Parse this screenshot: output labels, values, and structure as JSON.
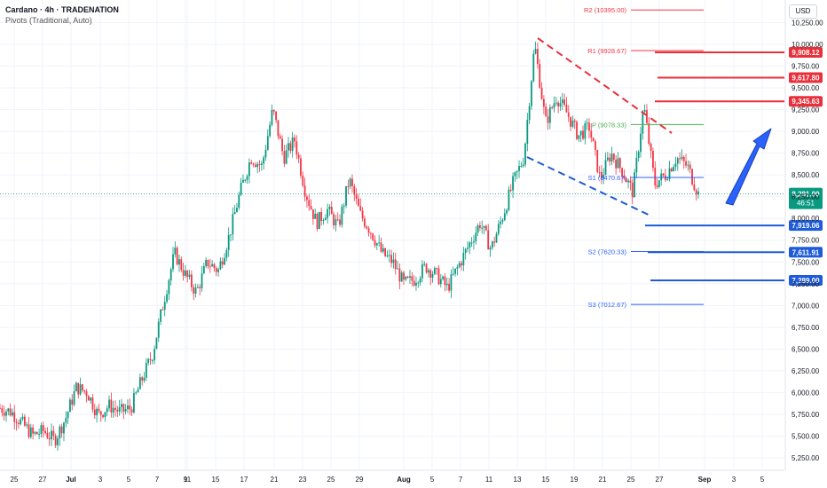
{
  "header": {
    "title": "Cardano · 4h · TRADENATION",
    "indicator": "Pivots (Traditional, Auto)",
    "currency": "USD"
  },
  "chart_data": {
    "type": "candlestick",
    "title": "Cardano · 4h · TRADENATION",
    "ylim": [
      5150,
      10400
    ],
    "y_ticks": [
      5250,
      5500,
      5750,
      6000,
      6250,
      6500,
      6750,
      7000,
      7250,
      7500,
      7750,
      8000,
      8250,
      8500,
      8750,
      9000,
      9250,
      9500,
      9750,
      10000,
      10250
    ],
    "y_tick_labels": [
      "5,250.00",
      "5,500.00",
      "5,750.00",
      "6,000.00",
      "6,250.00",
      "6,500.00",
      "6,750.00",
      "7,000.00",
      "7,250.00",
      "7,500.00",
      "7,750.00",
      "8,000.00",
      "8,250.00",
      "8,500.00",
      "8,750.00",
      "9,000.00",
      "9,250.00",
      "9,500.00",
      "9,750.00",
      "10,000.00",
      "10,250.00"
    ],
    "x_labels": [
      "25",
      "27",
      "Jul",
      "3",
      "5",
      "7",
      "9",
      "11",
      "15",
      "17",
      "21",
      "23",
      "25",
      "29",
      "Aug",
      "5",
      "7",
      "11",
      "13",
      "15",
      "19",
      "21",
      "25",
      "27",
      "Sep",
      "3",
      "5"
    ],
    "price_path": [
      {
        "x": "Jun 23",
        "y": 5820
      },
      {
        "x": "Jun 25",
        "y": 5780
      },
      {
        "x": "Jun 26",
        "y": 5650
      },
      {
        "x": "Jun 27",
        "y": 5510
      },
      {
        "x": "Jun 29",
        "y": 5560
      },
      {
        "x": "Jun 30",
        "y": 5450
      },
      {
        "x": "Jul 1",
        "y": 5700
      },
      {
        "x": "Jul 2",
        "y": 6060
      },
      {
        "x": "Jul 4",
        "y": 6000
      },
      {
        "x": "Jul 5",
        "y": 5740
      },
      {
        "x": "Jul 6",
        "y": 5850
      },
      {
        "x": "Jul 7",
        "y": 5780
      },
      {
        "x": "Jul 8",
        "y": 5820
      },
      {
        "x": "Jul 9",
        "y": 6150
      },
      {
        "x": "Jul 10",
        "y": 6450
      },
      {
        "x": "Jul 11",
        "y": 7050
      },
      {
        "x": "Jul 12",
        "y": 7600
      },
      {
        "x": "Jul 13",
        "y": 7350
      },
      {
        "x": "Jul 14",
        "y": 7150
      },
      {
        "x": "Jul 15",
        "y": 7500
      },
      {
        "x": "Jul 16",
        "y": 7400
      },
      {
        "x": "Jul 17",
        "y": 7800
      },
      {
        "x": "Jul 18",
        "y": 8300
      },
      {
        "x": "Jul 19",
        "y": 8700
      },
      {
        "x": "Jul 20",
        "y": 8600
      },
      {
        "x": "Jul 21",
        "y": 9250
      },
      {
        "x": "Jul 22",
        "y": 8700
      },
      {
        "x": "Jul 23",
        "y": 8900
      },
      {
        "x": "Jul 24",
        "y": 8300
      },
      {
        "x": "Jul 25",
        "y": 7950
      },
      {
        "x": "Jul 26",
        "y": 8100
      },
      {
        "x": "Jul 27",
        "y": 7900
      },
      {
        "x": "Jul 28",
        "y": 8450
      },
      {
        "x": "Jul 29",
        "y": 8050
      },
      {
        "x": "Jul 30",
        "y": 7850
      },
      {
        "x": "Jul 31",
        "y": 7600
      },
      {
        "x": "Aug 1",
        "y": 7500
      },
      {
        "x": "Aug 2",
        "y": 7250
      },
      {
        "x": "Aug 3",
        "y": 7300
      },
      {
        "x": "Aug 4",
        "y": 7450
      },
      {
        "x": "Aug 5",
        "y": 7350
      },
      {
        "x": "Aug 6",
        "y": 7200
      },
      {
        "x": "Aug 7",
        "y": 7450
      },
      {
        "x": "Aug 8",
        "y": 7700
      },
      {
        "x": "Aug 9",
        "y": 7950
      },
      {
        "x": "Aug 10",
        "y": 7650
      },
      {
        "x": "Aug 11",
        "y": 8000
      },
      {
        "x": "Aug 12",
        "y": 8400
      },
      {
        "x": "Aug 13",
        "y": 8700
      },
      {
        "x": "Aug 14",
        "y": 10000
      },
      {
        "x": "Aug 15",
        "y": 9100
      },
      {
        "x": "Aug 16",
        "y": 9400
      },
      {
        "x": "Aug 17",
        "y": 9200
      },
      {
        "x": "Aug 18",
        "y": 8950
      },
      {
        "x": "Aug 19",
        "y": 9050
      },
      {
        "x": "Aug 20",
        "y": 8450
      },
      {
        "x": "Aug 21",
        "y": 8750
      },
      {
        "x": "Aug 22",
        "y": 8550
      },
      {
        "x": "Aug 23",
        "y": 8300
      },
      {
        "x": "Aug 24",
        "y": 9300
      },
      {
        "x": "Aug 25",
        "y": 8400
      },
      {
        "x": "Aug 26",
        "y": 8500
      },
      {
        "x": "Aug 27",
        "y": 8700
      },
      {
        "x": "Aug 28",
        "y": 8600
      },
      {
        "x": "Aug 29",
        "y": 8281
      }
    ],
    "pivots": [
      {
        "label": "R2 (10395.00)",
        "value": 10395,
        "color": "#f23645",
        "visible": "partial"
      },
      {
        "label": "R1 (9928.67)",
        "value": 9928.67,
        "color": "#f23645"
      },
      {
        "label": "P (9078.33)",
        "value": 9078.33,
        "color": "#4caf50"
      },
      {
        "label": "S1 (8470.67)",
        "value": 8470.67,
        "color": "#2962ff"
      },
      {
        "label": "S2 (7620.33)",
        "value": 7620.33,
        "color": "#2962ff"
      },
      {
        "label": "S3 (7012.67)",
        "value": 7012.67,
        "color": "#2962ff"
      }
    ],
    "resistance_levels": [
      {
        "label": "9,908.12",
        "value": 9908.12
      },
      {
        "label": "9,617.80",
        "value": 9617.8
      },
      {
        "label": "9,345.63",
        "value": 9345.63
      }
    ],
    "support_levels": [
      {
        "label": "7,919.06",
        "value": 7919.06
      },
      {
        "label": "7,611.91",
        "value": 7611.91
      },
      {
        "label": "7,289.00",
        "value": 7289.0
      }
    ],
    "current_price": {
      "label": "8,281.00",
      "value": 8281.0,
      "countdown": "46:51"
    },
    "colors": {
      "up": "#089981",
      "down": "#f23645",
      "support": "#1e5bd8",
      "resistance": "#e8303b",
      "arrow": "#2962ff"
    }
  }
}
